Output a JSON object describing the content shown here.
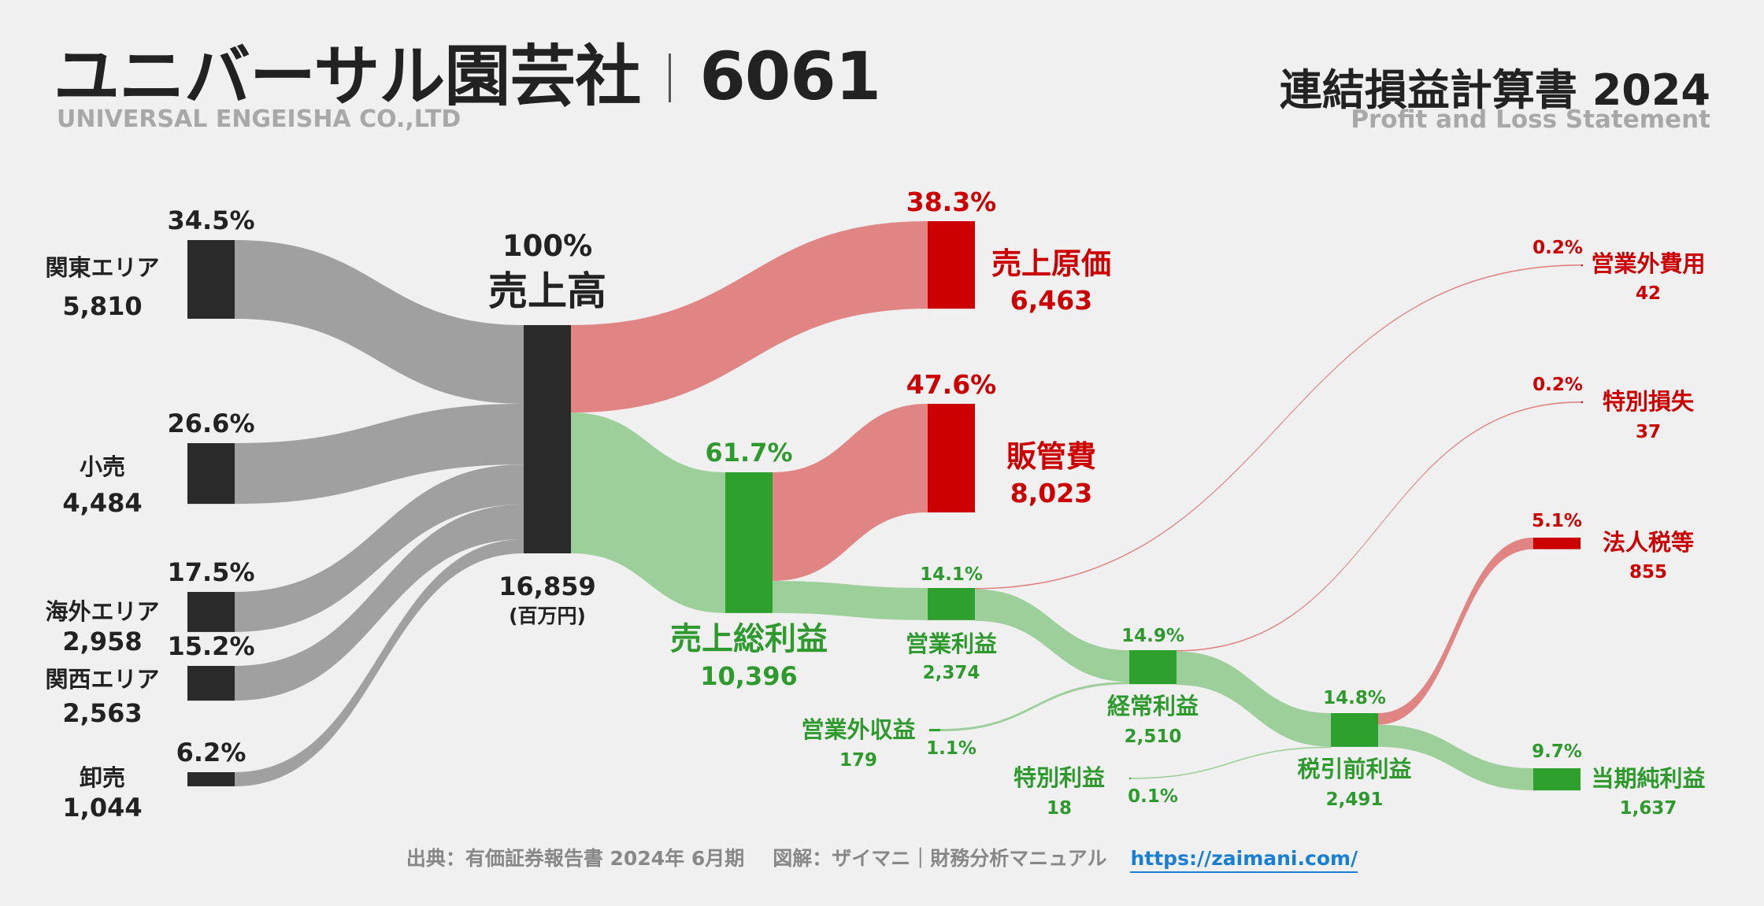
{
  "header": {
    "company_name": "ユニバーサル園芸社",
    "ticker": "6061",
    "company_name_en": "UNIVERSAL ENGEISHA CO.,LTD",
    "statement_title": "連結損益計算書 2024",
    "statement_title_en": "Profit and Loss Statement"
  },
  "footer": {
    "source": "出典：有価証券報告書 2024年 6月期",
    "credit": "図解：ザイマニ｜財務分析マニュアル",
    "url": "https://zaimani.com/"
  },
  "colors": {
    "dark": "#2a2a2a",
    "gray_flow": "#a0a0a0",
    "red": "#cc0000",
    "red_flow": "#e08484",
    "green": "#2ea02e",
    "green_flow": "#9dcf9a",
    "green_text": "#2e9a2e"
  },
  "chart_data": {
    "type": "sankey",
    "unit": "(百万円)",
    "nodes": [
      {
        "id": "kanto",
        "label": "関東エリア",
        "value": "5,810",
        "pct": "34.5%"
      },
      {
        "id": "retail",
        "label": "小売",
        "value": "4,484",
        "pct": "26.6%"
      },
      {
        "id": "overseas",
        "label": "海外エリア",
        "value": "2,958",
        "pct": "17.5%"
      },
      {
        "id": "kansai",
        "label": "関西エリア",
        "value": "2,563",
        "pct": "15.2%"
      },
      {
        "id": "wholesale",
        "label": "卸売",
        "value": "1,044",
        "pct": "6.2%"
      },
      {
        "id": "revenue",
        "label": "売上高",
        "value": "16,859",
        "pct": "100%"
      },
      {
        "id": "cogs",
        "label": "売上原価",
        "value": "6,463",
        "pct": "38.3%"
      },
      {
        "id": "gross_profit",
        "label": "売上総利益",
        "value": "10,396",
        "pct": "61.7%"
      },
      {
        "id": "sga",
        "label": "販管費",
        "value": "8,023",
        "pct": "47.6%"
      },
      {
        "id": "operating_income",
        "label": "営業利益",
        "value": "2,374",
        "pct": "14.1%"
      },
      {
        "id": "non_op_income",
        "label": "営業外収益",
        "value": "179",
        "pct": "1.1%"
      },
      {
        "id": "non_op_expense",
        "label": "営業外費用",
        "value": "42",
        "pct": "0.2%"
      },
      {
        "id": "ordinary_income",
        "label": "経常利益",
        "value": "2,510",
        "pct": "14.9%"
      },
      {
        "id": "extra_gain",
        "label": "特別利益",
        "value": "18",
        "pct": "0.1%"
      },
      {
        "id": "extra_loss",
        "label": "特別損失",
        "value": "37",
        "pct": "0.2%"
      },
      {
        "id": "pretax_income",
        "label": "税引前利益",
        "value": "2,491",
        "pct": "14.8%"
      },
      {
        "id": "income_tax",
        "label": "法人税等",
        "value": "855",
        "pct": "5.1%"
      },
      {
        "id": "net_income",
        "label": "当期純利益",
        "value": "1,637",
        "pct": "9.7%"
      }
    ],
    "links": [
      {
        "source": "kanto",
        "target": "revenue",
        "value": 5810
      },
      {
        "source": "retail",
        "target": "revenue",
        "value": 4484
      },
      {
        "source": "overseas",
        "target": "revenue",
        "value": 2958
      },
      {
        "source": "kansai",
        "target": "revenue",
        "value": 2563
      },
      {
        "source": "wholesale",
        "target": "revenue",
        "value": 1044
      },
      {
        "source": "revenue",
        "target": "cogs",
        "value": 6463
      },
      {
        "source": "revenue",
        "target": "gross_profit",
        "value": 10396
      },
      {
        "source": "gross_profit",
        "target": "sga",
        "value": 8023
      },
      {
        "source": "gross_profit",
        "target": "operating_income",
        "value": 2374
      },
      {
        "source": "operating_income",
        "target": "non_op_expense",
        "value": 42
      },
      {
        "source": "operating_income",
        "target": "ordinary_income",
        "value": 2332
      },
      {
        "source": "non_op_income",
        "target": "ordinary_income",
        "value": 179
      },
      {
        "source": "ordinary_income",
        "target": "extra_loss",
        "value": 37
      },
      {
        "source": "ordinary_income",
        "target": "pretax_income",
        "value": 2473
      },
      {
        "source": "extra_gain",
        "target": "pretax_income",
        "value": 18
      },
      {
        "source": "pretax_income",
        "target": "income_tax",
        "value": 855
      },
      {
        "source": "pretax_income",
        "target": "net_income",
        "value": 1637
      }
    ]
  }
}
